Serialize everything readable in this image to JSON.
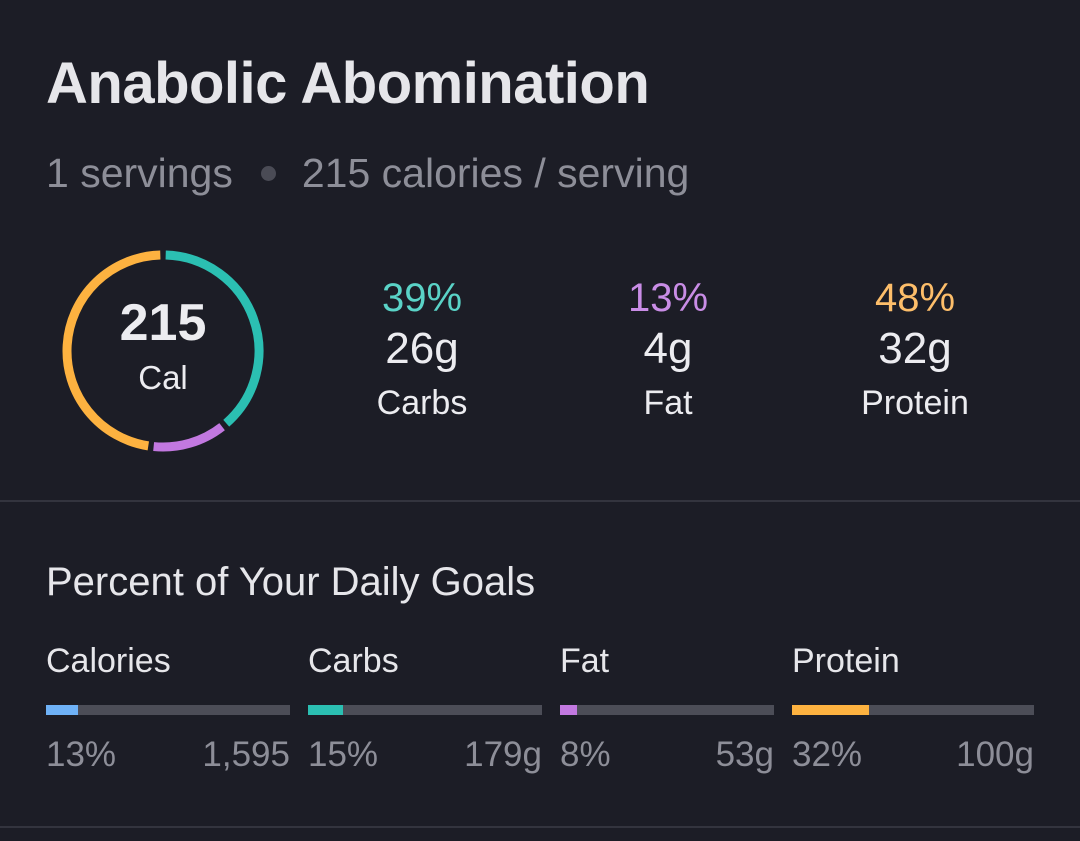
{
  "recipe": {
    "title": "Anabolic Abomination",
    "servings": "1 servings",
    "calories_per_serving": "215 calories / serving"
  },
  "summary": {
    "calories_value": "215",
    "calories_unit": "Cal",
    "ring": [
      {
        "macro": "Carbs",
        "fraction": 0.39,
        "color": "#2bbfb2"
      },
      {
        "macro": "Fat",
        "fraction": 0.13,
        "color": "#c278e0"
      },
      {
        "macro": "Protein",
        "fraction": 0.48,
        "color": "#fdb240"
      }
    ]
  },
  "macros": [
    {
      "percent": "39%",
      "grams": "26g",
      "name": "Carbs",
      "color": "#5ad3c7"
    },
    {
      "percent": "13%",
      "grams": "4g",
      "name": "Fat",
      "color": "#c98de6"
    },
    {
      "percent": "48%",
      "grams": "32g",
      "name": "Protein",
      "color": "#fdbe6a"
    }
  ],
  "daily_goals": {
    "title": "Percent of Your Daily Goals",
    "items": [
      {
        "name": "Calories",
        "percent": "13%",
        "goal": "1,595",
        "fraction": 0.13,
        "color": "#6eb1f6"
      },
      {
        "name": "Carbs",
        "percent": "15%",
        "goal": "179g",
        "fraction": 0.15,
        "color": "#2bbfb2"
      },
      {
        "name": "Fat",
        "percent": "8%",
        "goal": "53g",
        "fraction": 0.08,
        "color": "#c278e0"
      },
      {
        "name": "Protein",
        "percent": "32%",
        "goal": "100g",
        "fraction": 0.32,
        "color": "#fdb240"
      }
    ]
  }
}
